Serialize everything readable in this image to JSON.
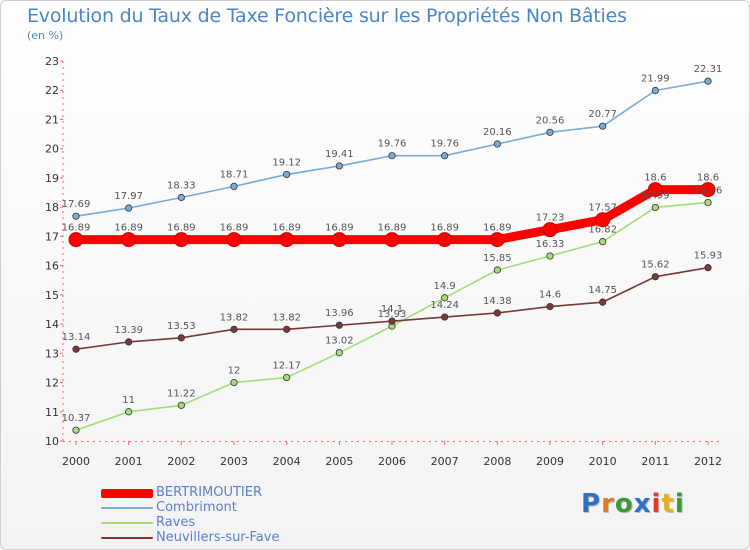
{
  "title": "Evolution du Taux de Taxe Foncière sur les Propriétés Non Bâties",
  "unit": "(en %)",
  "logo": "Proxiti",
  "logo_colors": [
    "#2e6fc9",
    "#e07a1f",
    "#3c9a3c",
    "#2e6fc9",
    "#e03a2a",
    "#e0b01f",
    "#3c9a3c"
  ],
  "chart_data": {
    "type": "line",
    "x": [
      "2000",
      "2001",
      "2002",
      "2003",
      "2004",
      "2005",
      "2006",
      "2007",
      "2008",
      "2009",
      "2010",
      "2011",
      "2012"
    ],
    "ylim": [
      10,
      23
    ],
    "yticks": [
      "10",
      "11",
      "12",
      "13",
      "14",
      "15",
      "16",
      "17",
      "18",
      "19",
      "20",
      "21",
      "22",
      "23"
    ],
    "grid": false,
    "legend_position": "bottom-left",
    "series": [
      {
        "name": "BERTRIMOUTIER",
        "color": "#ff0000",
        "values": [
          16.89,
          16.89,
          16.89,
          16.89,
          16.89,
          16.89,
          16.89,
          16.89,
          16.89,
          17.23,
          17.57,
          18.6,
          18.6
        ],
        "labels": [
          "16.89",
          "16.89",
          "16.89",
          "16.89",
          "16.89",
          "16.89",
          "16.89",
          "16.89",
          "16.89",
          "17.23",
          "17.57",
          "18.6",
          "18.6"
        ]
      },
      {
        "name": "Combrimont",
        "color": "#7aaad6",
        "values": [
          17.69,
          17.97,
          18.33,
          18.71,
          19.12,
          19.41,
          19.76,
          19.76,
          20.16,
          20.56,
          20.77,
          21.99,
          22.31
        ],
        "labels": [
          "17.69",
          "17.97",
          "18.33",
          "18.71",
          "19.12",
          "19.41",
          "19.76",
          "19.76",
          "20.16",
          "20.56",
          "20.77",
          "21.99",
          "22.31"
        ]
      },
      {
        "name": "Raves",
        "color": "#a5dc78",
        "values": [
          10.37,
          11,
          11.22,
          12,
          12.17,
          13.02,
          13.93,
          14.9,
          15.85,
          16.33,
          16.82,
          17.99,
          18.16
        ],
        "labels": [
          "10.37",
          "11",
          "11.22",
          "12",
          "12.17",
          "13.02",
          "13.93",
          "14.9",
          "15.85",
          "16.33",
          "16.82",
          "17.99",
          "18.16"
        ]
      },
      {
        "name": "Neuvillers-sur-Fave",
        "color": "#7a3838",
        "values": [
          13.14,
          13.39,
          13.53,
          13.82,
          13.82,
          13.96,
          14.1,
          14.24,
          14.38,
          14.6,
          14.75,
          15.62,
          15.93
        ],
        "labels": [
          "13.14",
          "13.39",
          "13.53",
          "13.82",
          "13.82",
          "13.96",
          "14.1",
          "14.24",
          "14.38",
          "14.6",
          "14.75",
          "15.62",
          "15.93"
        ]
      }
    ]
  }
}
